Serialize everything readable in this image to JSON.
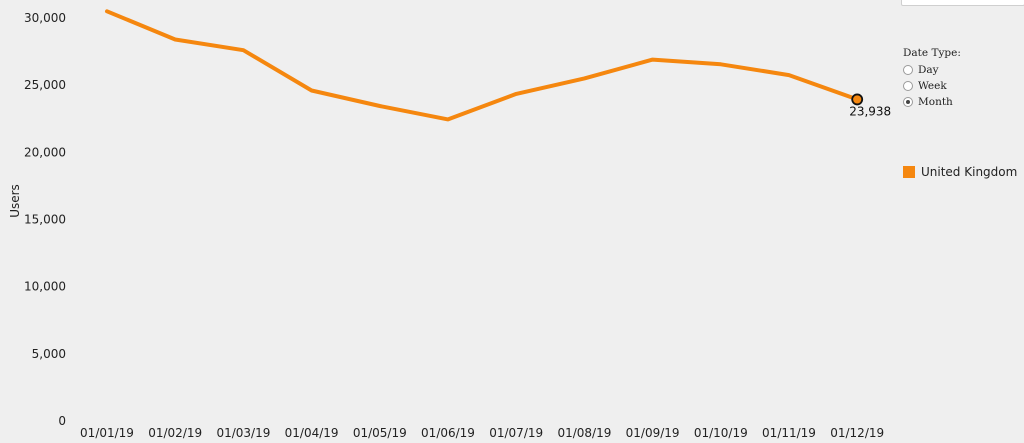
{
  "chart_data": {
    "type": "line",
    "categories": [
      "01/01/19",
      "01/02/19",
      "01/03/19",
      "01/04/19",
      "01/05/19",
      "01/06/19",
      "01/07/19",
      "01/08/19",
      "01/09/19",
      "01/10/19",
      "01/11/19",
      "01/12/19"
    ],
    "series": [
      {
        "name": "United Kingdom",
        "color": "#f5870f",
        "values": [
          30500,
          28400,
          27600,
          24600,
          23450,
          22450,
          24350,
          25500,
          26900,
          26550,
          25750,
          23938
        ]
      }
    ],
    "ylabel": "Users",
    "ylim": [
      0,
      30000
    ],
    "yticks": [
      0,
      5000,
      10000,
      15000,
      20000,
      25000,
      30000
    ],
    "ytick_labels": [
      "0",
      "5,000",
      "10,000",
      "15,000",
      "20,000",
      "25,000",
      "30,000"
    ],
    "highlight": {
      "index": 11,
      "label": "23,938"
    },
    "legend_position": "right"
  },
  "controls": {
    "date_type": {
      "title": "Date Type:",
      "options": [
        "Day",
        "Week",
        "Month"
      ],
      "selected": "Month"
    }
  },
  "legend": {
    "label": "United Kingdom",
    "color": "#f5870f"
  }
}
